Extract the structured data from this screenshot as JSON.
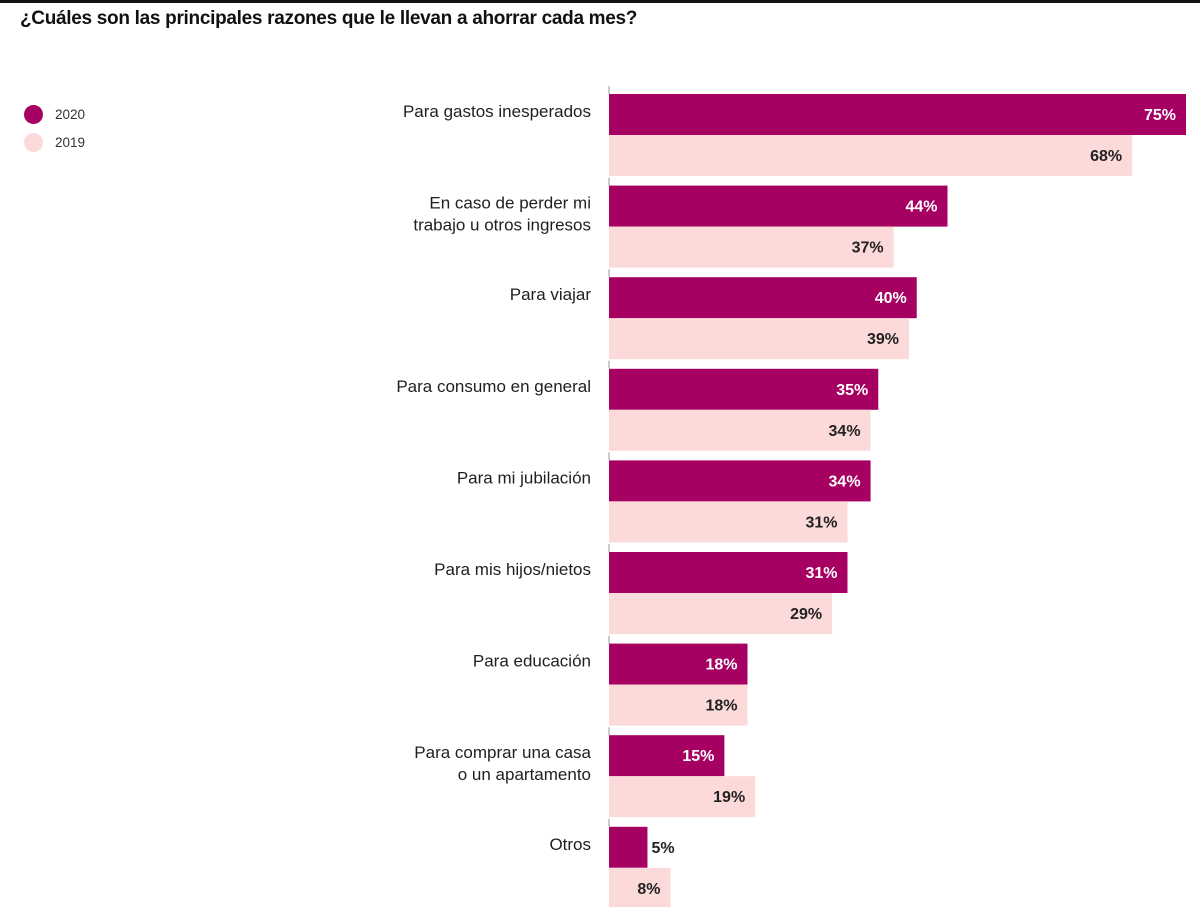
{
  "chart_data": {
    "type": "bar",
    "orientation": "horizontal",
    "title": "¿Cuáles son las principales razones que le llevan a ahorrar cada mes?",
    "xlabel": "",
    "ylabel": "",
    "xlim": [
      0,
      75
    ],
    "grid": false,
    "legend_position": "top-left",
    "categories": [
      [
        "Para gastos inesperados"
      ],
      [
        "En caso de perder mi",
        "trabajo u otros ingresos"
      ],
      [
        "Para viajar"
      ],
      [
        "Para consumo en general"
      ],
      [
        "Para mi jubilación"
      ],
      [
        "Para mis hijos/nietos"
      ],
      [
        "Para educación"
      ],
      [
        "Para comprar una casa",
        "o un apartamento"
      ],
      [
        "Otros"
      ]
    ],
    "series": [
      {
        "name": "2020",
        "color": "#a50062",
        "label_color": "#ffffff",
        "values": [
          75,
          44,
          40,
          35,
          34,
          31,
          18,
          15,
          5
        ],
        "labels": [
          "75%",
          "44%",
          "40%",
          "35%",
          "34%",
          "31%",
          "18%",
          "15%",
          "5%"
        ]
      },
      {
        "name": "2019",
        "color": "#fcdada",
        "label_color": "#222222",
        "values": [
          68,
          37,
          39,
          34,
          31,
          29,
          18,
          19,
          8
        ],
        "labels": [
          "68%",
          "37%",
          "39%",
          "34%",
          "31%",
          "29%",
          "18%",
          "19%",
          "8%"
        ]
      }
    ]
  },
  "legend": {
    "items": [
      {
        "label": "2020",
        "color": "#a50062"
      },
      {
        "label": "2019",
        "color": "#fcdada"
      }
    ]
  }
}
